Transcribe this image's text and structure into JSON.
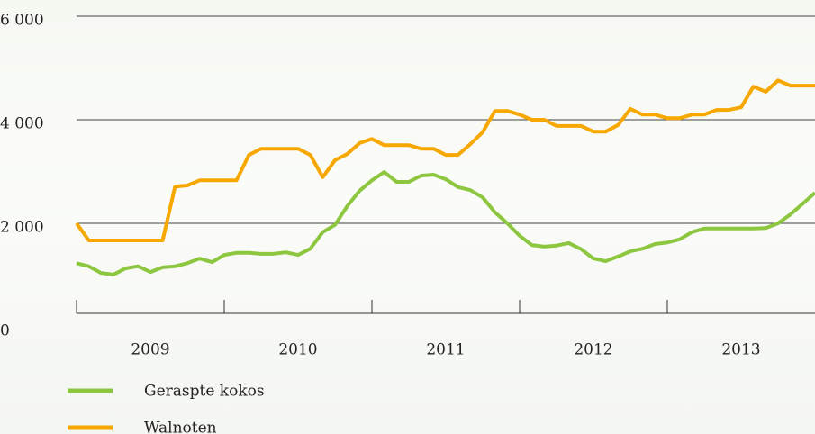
{
  "chart_data": {
    "type": "line",
    "x": [
      2009,
      2009.083,
      2009.167,
      2009.25,
      2009.333,
      2009.417,
      2009.5,
      2009.583,
      2009.667,
      2009.75,
      2009.833,
      2009.917,
      2010,
      2010.083,
      2010.167,
      2010.25,
      2010.333,
      2010.417,
      2010.5,
      2010.583,
      2010.667,
      2010.75,
      2010.833,
      2010.917,
      2011,
      2011.083,
      2011.167,
      2011.25,
      2011.333,
      2011.417,
      2011.5,
      2011.583,
      2011.667,
      2011.75,
      2011.833,
      2011.917,
      2012,
      2012.083,
      2012.167,
      2012.25,
      2012.333,
      2012.417,
      2012.5,
      2012.583,
      2012.667,
      2012.75,
      2012.833,
      2012.917,
      2013,
      2013.083,
      2013.167,
      2013.25,
      2013.333,
      2013.417,
      2013.5,
      2013.583,
      2013.667,
      2013.75,
      2013.833,
      2013.917,
      2014
    ],
    "xlim": [
      2009,
      2014
    ],
    "xticks": [
      2009,
      2010,
      2011,
      2012,
      2013
    ],
    "categories": [
      "2009",
      "2010",
      "2011",
      "2012",
      "2013"
    ],
    "ylim": [
      0,
      6000
    ],
    "yticks": [
      0,
      {
        "value": 2000,
        "label": "2 000"
      },
      {
        "value": 4000,
        "label": "4 000"
      },
      {
        "value": 6000,
        "label": "6 000"
      }
    ],
    "grid": true,
    "legend": "bottom-left",
    "series": [
      {
        "name": "Geraspte kokos",
        "color": "#8dc63f",
        "values": [
          1230,
          1170,
          1040,
          1010,
          1130,
          1170,
          1060,
          1150,
          1170,
          1230,
          1320,
          1250,
          1390,
          1430,
          1430,
          1410,
          1410,
          1440,
          1390,
          1510,
          1830,
          1970,
          2330,
          2630,
          2830,
          2990,
          2800,
          2800,
          2920,
          2940,
          2850,
          2700,
          2640,
          2500,
          2210,
          2000,
          1760,
          1580,
          1550,
          1570,
          1620,
          1500,
          1320,
          1270,
          1360,
          1460,
          1510,
          1600,
          1630,
          1690,
          1830,
          1900,
          1900,
          1900,
          1900,
          1900,
          1910,
          2000,
          2170,
          2380,
          2590
        ]
      },
      {
        "name": "Walnoten",
        "color": "#f7a800",
        "values": [
          2000,
          1670,
          1670,
          1670,
          1670,
          1670,
          1670,
          1670,
          2710,
          2730,
          2830,
          2830,
          2830,
          2830,
          3320,
          3440,
          3440,
          3440,
          3440,
          3320,
          2890,
          3220,
          3340,
          3550,
          3630,
          3510,
          3510,
          3510,
          3440,
          3440,
          3320,
          3320,
          3530,
          3760,
          4170,
          4170,
          4100,
          4000,
          4000,
          3880,
          3880,
          3880,
          3770,
          3770,
          3900,
          4210,
          4100,
          4100,
          4030,
          4030,
          4100,
          4100,
          4190,
          4190,
          4240,
          4640,
          4540,
          4760,
          4660,
          4660,
          4660
        ]
      }
    ]
  }
}
